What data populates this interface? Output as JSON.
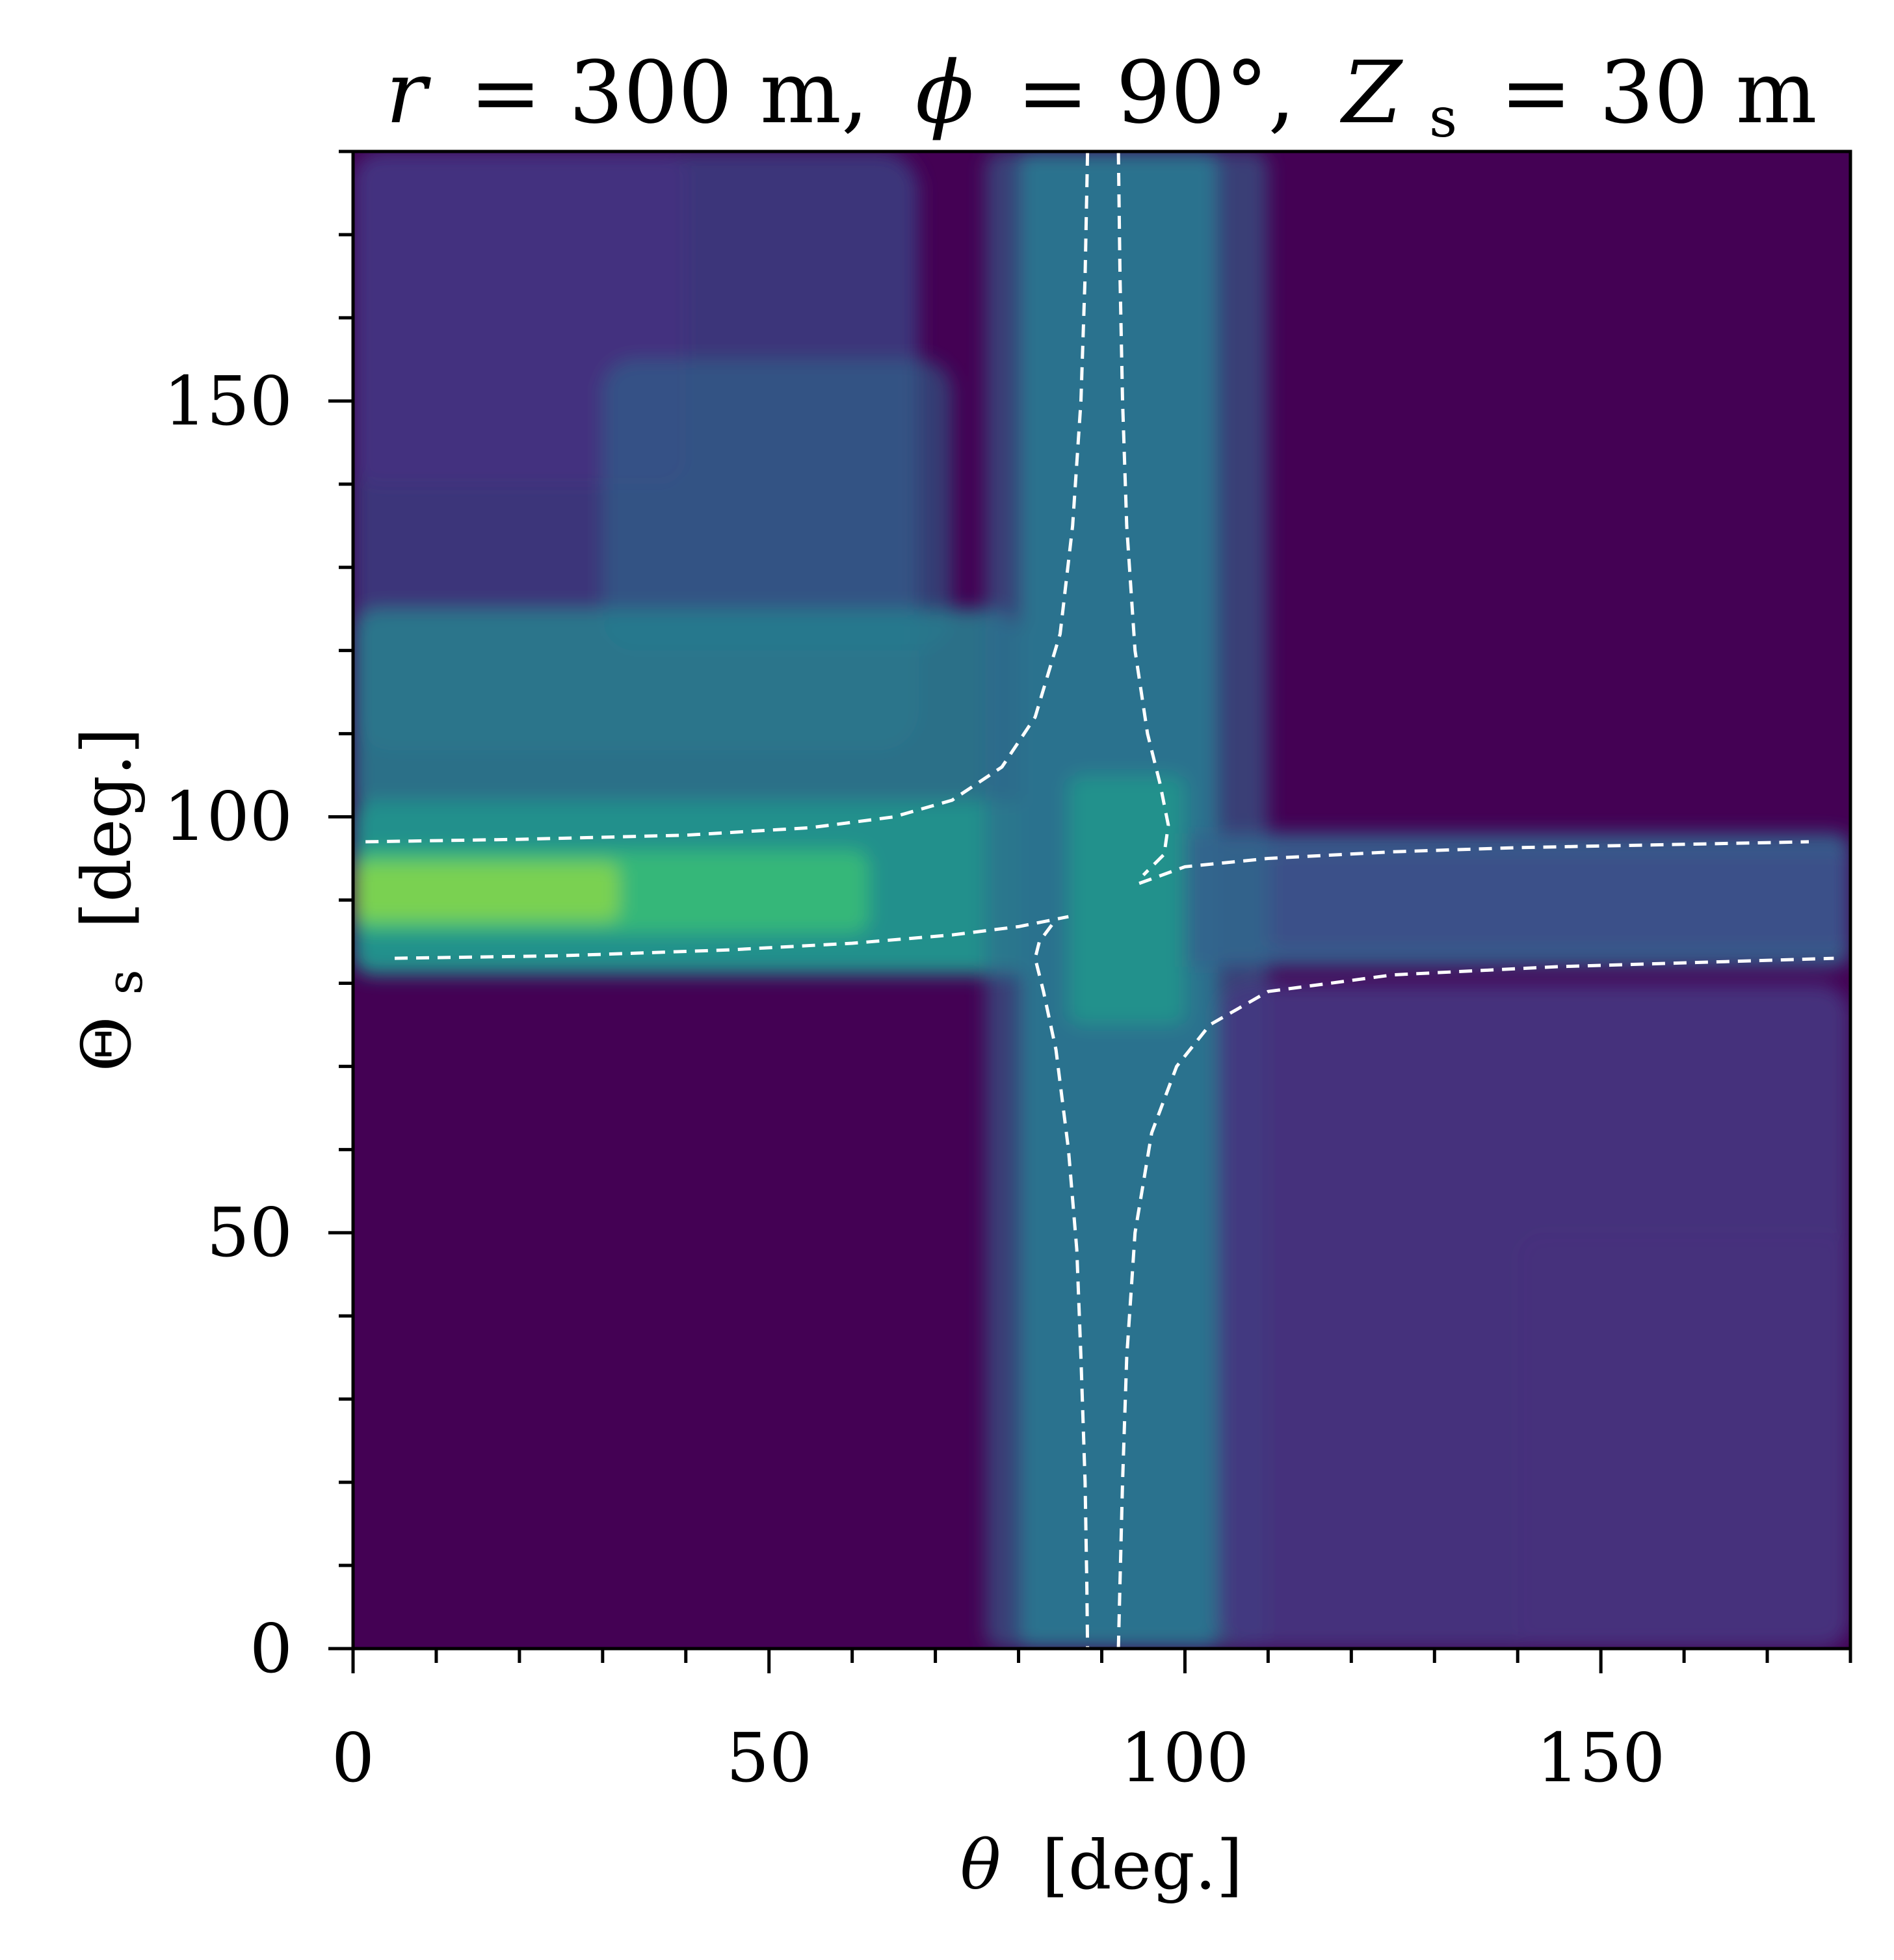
{
  "chart_data": {
    "type": "heatmap",
    "title": {
      "r_symbol": "r",
      "r_value": "= 300 m,",
      "phi_symbol": "ϕ",
      "phi_value": "= 90°,",
      "z_symbol": "Z",
      "z_sub": "s",
      "z_value": "= 30 m"
    },
    "xlabel": {
      "symbol": "θ",
      "unit": "[deg.]"
    },
    "ylabel": {
      "symbol": "Θ",
      "sub": "s",
      "unit": "[deg.]"
    },
    "xlim": [
      0,
      180
    ],
    "ylim": [
      0,
      180
    ],
    "x_ticks": [
      0,
      50,
      100,
      150
    ],
    "y_ticks": [
      0,
      50,
      100,
      150
    ],
    "x_tick_labels": [
      "0",
      "50",
      "100",
      "150"
    ],
    "y_tick_labels": [
      "0",
      "50",
      "100",
      "150"
    ],
    "minor_tick_step": 10,
    "colormap": "viridis",
    "colorbar": false,
    "grid": false,
    "intensity_features": {
      "horizontal_band_center": 91,
      "vertical_band_center": 92,
      "peak": {
        "x": 8,
        "y": 91
      }
    },
    "contours": [
      {
        "name": "",
        "color": "#ffffff",
        "style": "dashed",
        "points": [
          [
            1.5,
            97
          ],
          [
            20,
            97.3
          ],
          [
            40,
            97.8
          ],
          [
            55,
            98.7
          ],
          [
            65,
            100
          ],
          [
            72,
            102
          ],
          [
            78,
            106
          ],
          [
            82,
            112
          ],
          [
            85,
            122
          ],
          [
            86.5,
            135
          ],
          [
            87.5,
            150
          ],
          [
            88,
            165
          ],
          [
            88.3,
            180
          ]
        ]
      },
      {
        "name": "",
        "color": "#ffffff",
        "style": "dashed",
        "points": [
          [
            92,
            180
          ],
          [
            92.2,
            165
          ],
          [
            92.5,
            150
          ],
          [
            93,
            135
          ],
          [
            94,
            120
          ],
          [
            95.5,
            110
          ],
          [
            97,
            104
          ],
          [
            98,
            99
          ],
          [
            97.5,
            95.5
          ],
          [
            95,
            93
          ]
        ]
      },
      {
        "name": "",
        "color": "#ffffff",
        "style": "dashed",
        "points": [
          [
            94.5,
            92
          ],
          [
            100,
            94
          ],
          [
            110,
            95
          ],
          [
            125,
            95.8
          ],
          [
            140,
            96.3
          ],
          [
            160,
            96.7
          ],
          [
            175,
            97
          ]
        ]
      },
      {
        "name": "",
        "color": "#ffffff",
        "style": "dashed",
        "points": [
          [
            5,
            83
          ],
          [
            25,
            83.3
          ],
          [
            45,
            84
          ],
          [
            60,
            84.8
          ],
          [
            72,
            85.8
          ],
          [
            80,
            86.8
          ],
          [
            86,
            88
          ]
        ]
      },
      {
        "name": "",
        "color": "#ffffff",
        "style": "dashed",
        "points": [
          [
            84,
            87
          ],
          [
            82.5,
            85
          ],
          [
            82,
            83
          ],
          [
            83,
            79
          ],
          [
            84.5,
            72
          ],
          [
            86,
            60
          ],
          [
            87,
            48
          ],
          [
            87.5,
            35
          ],
          [
            88,
            20
          ],
          [
            88.2,
            8
          ],
          [
            88.3,
            0
          ]
        ]
      },
      {
        "name": "",
        "color": "#ffffff",
        "style": "dashed",
        "points": [
          [
            92,
            0
          ],
          [
            92.2,
            8
          ],
          [
            92.5,
            20
          ],
          [
            93,
            35
          ],
          [
            94,
            50
          ],
          [
            96,
            62
          ],
          [
            99,
            70
          ],
          [
            103,
            75
          ],
          [
            110,
            79
          ],
          [
            125,
            81
          ],
          [
            145,
            82
          ],
          [
            165,
            82.6
          ],
          [
            178,
            83
          ]
        ]
      }
    ]
  }
}
